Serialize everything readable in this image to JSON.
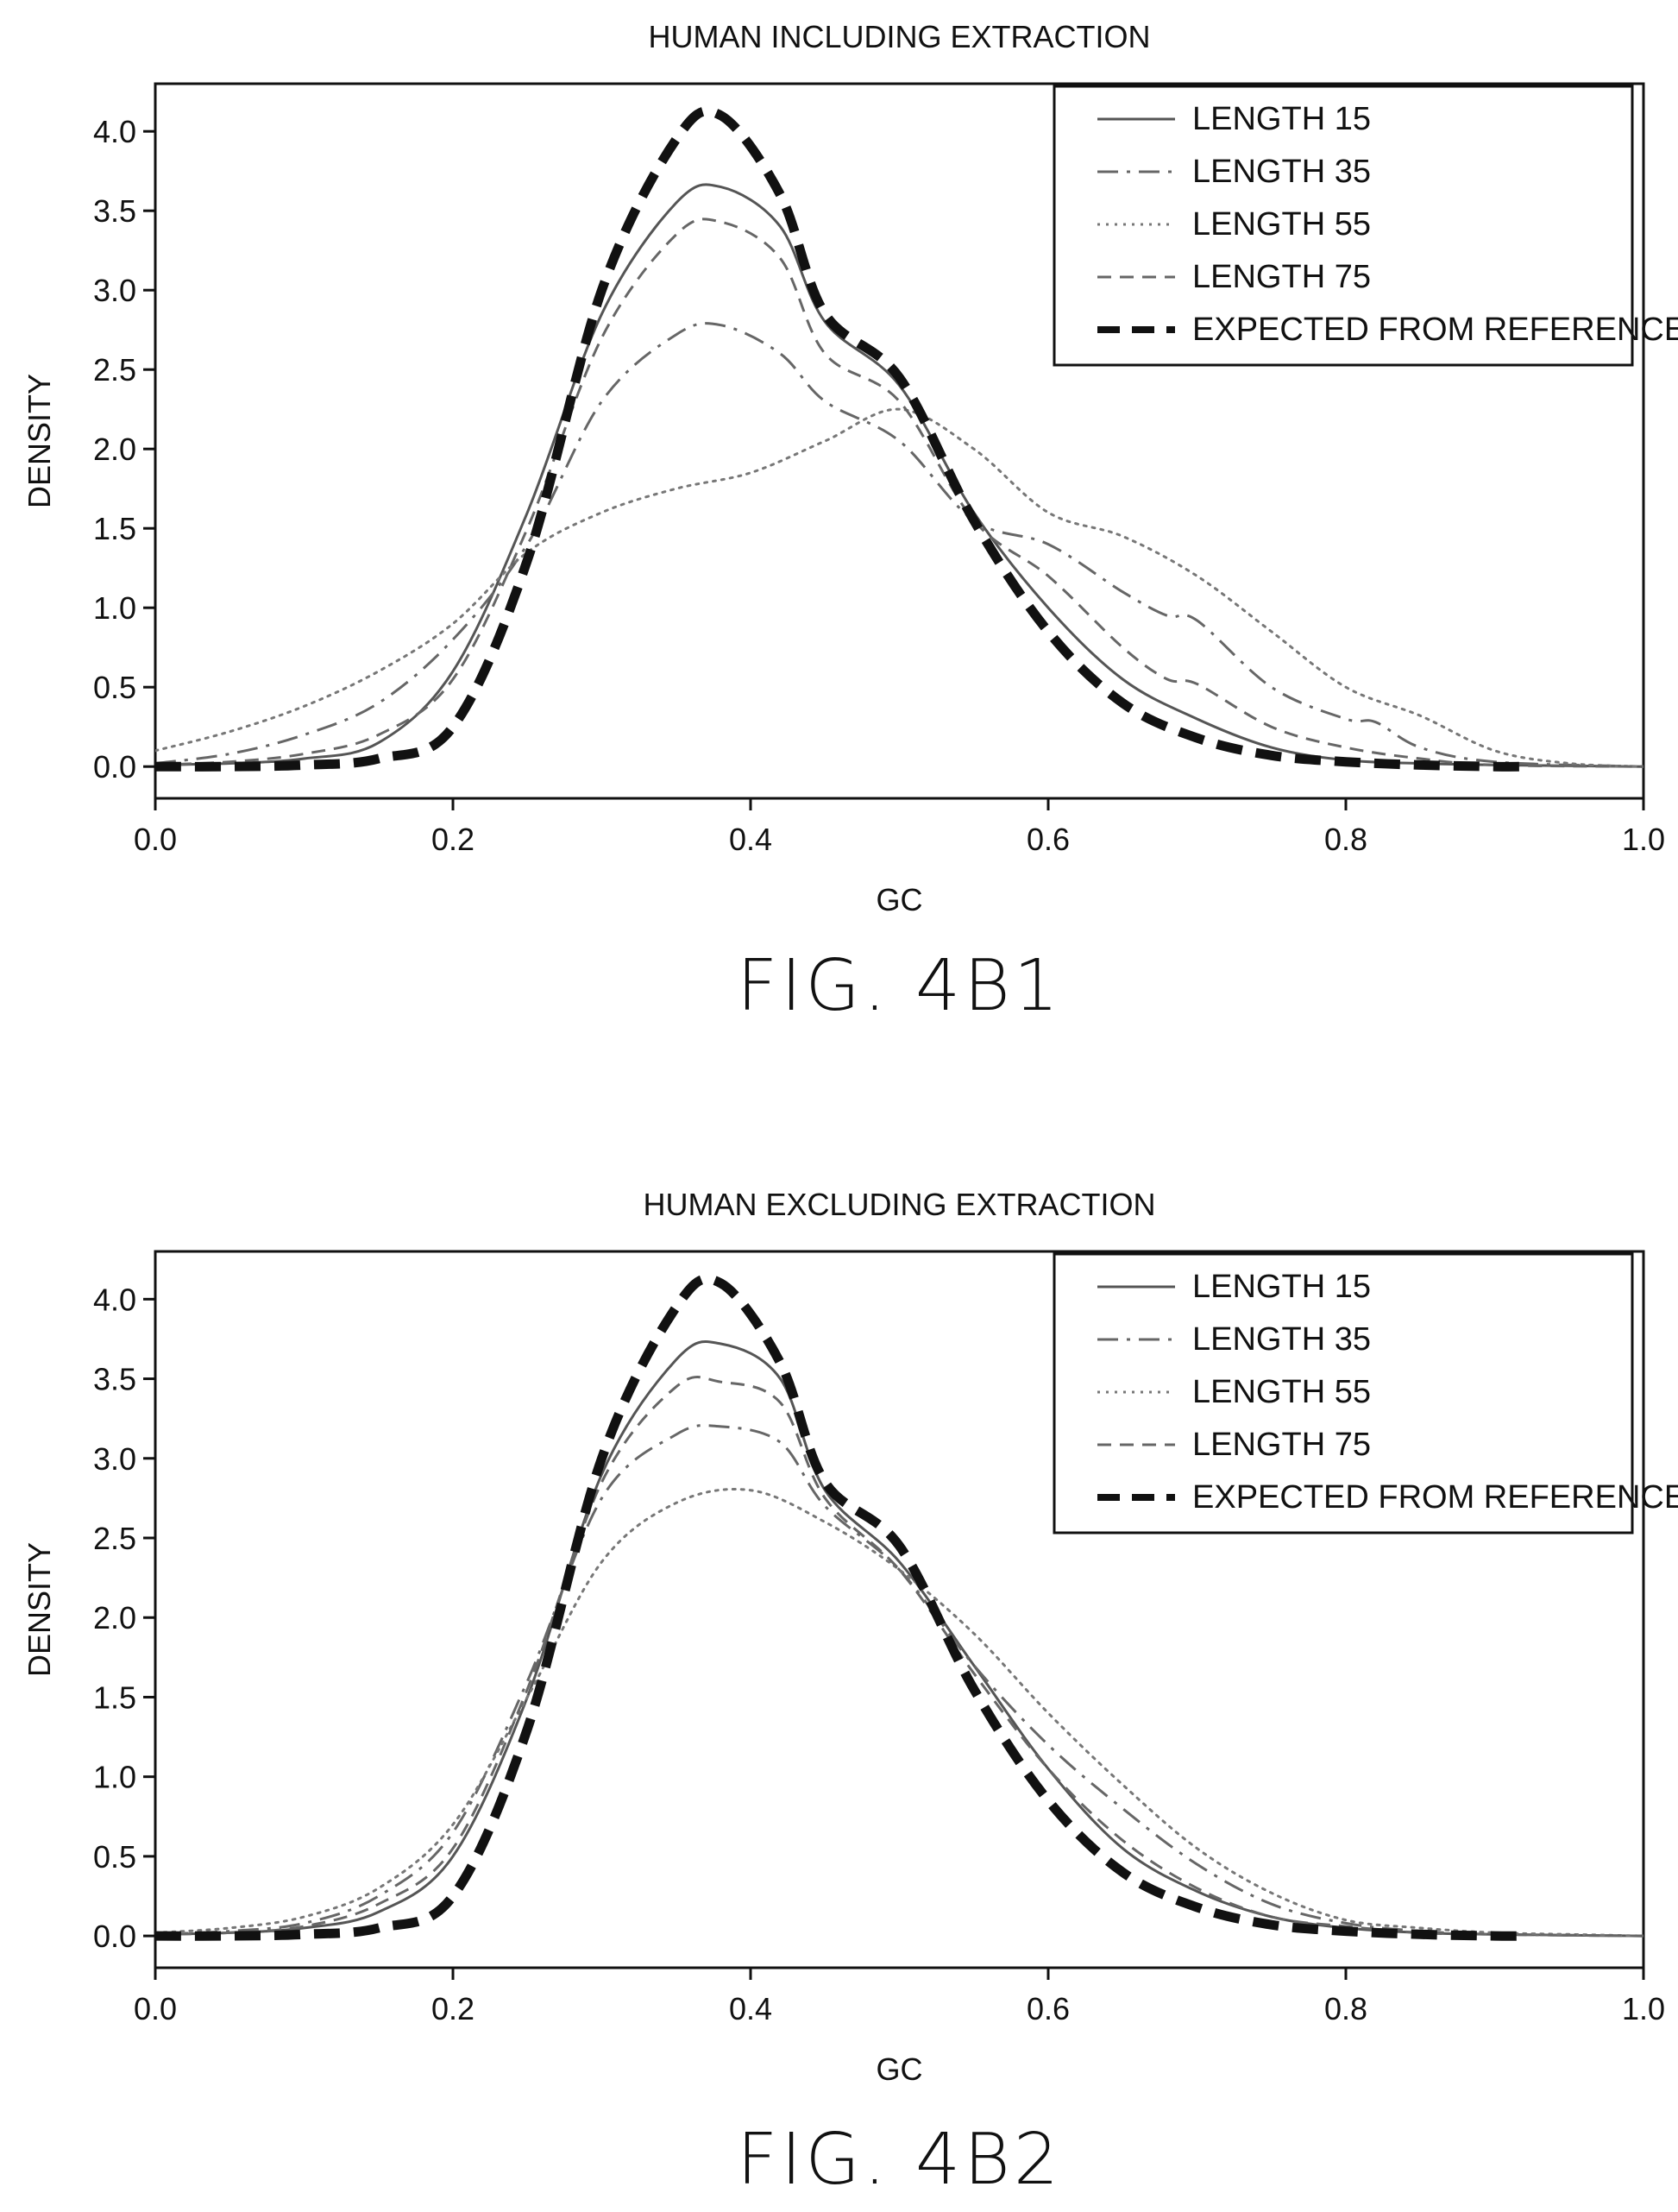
{
  "chart_data": [
    {
      "type": "line",
      "title": "HUMAN INCLUDING EXTRACTION",
      "caption": "FIG. 4B1",
      "xlabel": "GC",
      "ylabel": "DENSITY",
      "xlim": [
        0.0,
        1.0
      ],
      "ylim": [
        -0.2,
        4.3
      ],
      "xticks": [
        "0.0",
        "0.2",
        "0.4",
        "0.6",
        "0.8",
        "1.0"
      ],
      "yticks": [
        "0.0",
        "0.5",
        "1.0",
        "1.5",
        "2.0",
        "2.5",
        "3.0",
        "3.5",
        "4.0"
      ],
      "legend_position": "top-right",
      "grid": false,
      "series": [
        {
          "name": "LENGTH 15",
          "style": "solid",
          "color": "#555555",
          "x": [
            0.0,
            0.05,
            0.1,
            0.15,
            0.2,
            0.25,
            0.3,
            0.35,
            0.38,
            0.42,
            0.45,
            0.5,
            0.55,
            0.6,
            0.65,
            0.7,
            0.75,
            0.8,
            0.85,
            0.9,
            1.0
          ],
          "y": [
            0.01,
            0.02,
            0.05,
            0.15,
            0.6,
            1.6,
            2.85,
            3.55,
            3.65,
            3.4,
            2.8,
            2.4,
            1.6,
            1.0,
            0.55,
            0.3,
            0.12,
            0.04,
            0.02,
            0.01,
            0.0
          ]
        },
        {
          "name": "LENGTH 35",
          "style": "dashdot",
          "color": "#666666",
          "x": [
            0.0,
            0.05,
            0.1,
            0.15,
            0.2,
            0.25,
            0.3,
            0.35,
            0.38,
            0.42,
            0.45,
            0.5,
            0.55,
            0.6,
            0.65,
            0.68,
            0.7,
            0.75,
            0.8,
            0.82,
            0.85,
            0.9,
            1.0
          ],
          "y": [
            0.02,
            0.08,
            0.2,
            0.4,
            0.8,
            1.4,
            2.3,
            2.72,
            2.78,
            2.6,
            2.3,
            2.05,
            1.55,
            1.4,
            1.1,
            0.95,
            0.92,
            0.5,
            0.3,
            0.28,
            0.12,
            0.03,
            0.0
          ]
        },
        {
          "name": "LENGTH 55",
          "style": "dotted",
          "color": "#777777",
          "x": [
            0.0,
            0.05,
            0.1,
            0.15,
            0.2,
            0.25,
            0.3,
            0.35,
            0.4,
            0.45,
            0.5,
            0.55,
            0.6,
            0.65,
            0.7,
            0.75,
            0.8,
            0.85,
            0.9,
            0.95,
            1.0
          ],
          "y": [
            0.1,
            0.22,
            0.38,
            0.6,
            0.9,
            1.35,
            1.6,
            1.75,
            1.85,
            2.05,
            2.25,
            2.0,
            1.6,
            1.45,
            1.2,
            0.85,
            0.5,
            0.32,
            0.1,
            0.02,
            0.0
          ]
        },
        {
          "name": "LENGTH 75",
          "style": "dashed",
          "color": "#666666",
          "x": [
            0.0,
            0.05,
            0.1,
            0.15,
            0.2,
            0.25,
            0.3,
            0.35,
            0.38,
            0.42,
            0.45,
            0.5,
            0.55,
            0.6,
            0.65,
            0.68,
            0.7,
            0.75,
            0.8,
            0.85,
            0.9,
            1.0
          ],
          "y": [
            0.01,
            0.03,
            0.08,
            0.2,
            0.55,
            1.5,
            2.7,
            3.35,
            3.43,
            3.2,
            2.6,
            2.3,
            1.55,
            1.2,
            0.75,
            0.55,
            0.52,
            0.25,
            0.12,
            0.05,
            0.01,
            0.0
          ]
        },
        {
          "name": "EXPECTED FROM REFERENCE",
          "style": "bold-dashed",
          "color": "#111111",
          "x": [
            0.0,
            0.05,
            0.1,
            0.15,
            0.2,
            0.25,
            0.3,
            0.35,
            0.38,
            0.42,
            0.45,
            0.5,
            0.55,
            0.6,
            0.65,
            0.7,
            0.75,
            0.8,
            0.85,
            0.9,
            0.92
          ],
          "y": [
            0.0,
            0.0,
            0.01,
            0.05,
            0.25,
            1.3,
            3.0,
            3.95,
            4.1,
            3.6,
            2.85,
            2.45,
            1.55,
            0.85,
            0.4,
            0.18,
            0.07,
            0.03,
            0.01,
            0.0,
            0.0
          ]
        }
      ]
    },
    {
      "type": "line",
      "title": "HUMAN EXCLUDING EXTRACTION",
      "caption": "FIG. 4B2",
      "xlabel": "GC",
      "ylabel": "DENSITY",
      "xlim": [
        0.0,
        1.0
      ],
      "ylim": [
        -0.2,
        4.3
      ],
      "xticks": [
        "0.0",
        "0.2",
        "0.4",
        "0.6",
        "0.8",
        "1.0"
      ],
      "yticks": [
        "0.0",
        "0.5",
        "1.0",
        "1.5",
        "2.0",
        "2.5",
        "3.0",
        "3.5",
        "4.0"
      ],
      "legend_position": "top-right",
      "grid": false,
      "series": [
        {
          "name": "LENGTH 15",
          "style": "solid",
          "color": "#555555",
          "x": [
            0.0,
            0.05,
            0.1,
            0.15,
            0.2,
            0.25,
            0.3,
            0.35,
            0.38,
            0.42,
            0.45,
            0.5,
            0.55,
            0.6,
            0.65,
            0.7,
            0.75,
            0.8,
            0.85,
            0.9,
            1.0
          ],
          "y": [
            0.01,
            0.02,
            0.05,
            0.15,
            0.5,
            1.5,
            2.9,
            3.62,
            3.72,
            3.5,
            2.8,
            2.35,
            1.7,
            1.05,
            0.55,
            0.28,
            0.12,
            0.05,
            0.02,
            0.01,
            0.0
          ]
        },
        {
          "name": "LENGTH 35",
          "style": "dashdot",
          "color": "#666666",
          "x": [
            0.0,
            0.05,
            0.1,
            0.15,
            0.2,
            0.25,
            0.3,
            0.35,
            0.38,
            0.42,
            0.45,
            0.5,
            0.55,
            0.6,
            0.65,
            0.7,
            0.75,
            0.8,
            0.85,
            0.9,
            1.0
          ],
          "y": [
            0.01,
            0.03,
            0.08,
            0.25,
            0.65,
            1.6,
            2.75,
            3.15,
            3.2,
            3.1,
            2.7,
            2.3,
            1.7,
            1.2,
            0.8,
            0.45,
            0.2,
            0.08,
            0.03,
            0.01,
            0.0
          ]
        },
        {
          "name": "LENGTH 55",
          "style": "dotted",
          "color": "#777777",
          "x": [
            0.0,
            0.05,
            0.1,
            0.15,
            0.2,
            0.25,
            0.3,
            0.35,
            0.4,
            0.45,
            0.5,
            0.55,
            0.6,
            0.65,
            0.7,
            0.75,
            0.8,
            0.85,
            0.9,
            0.95,
            1.0
          ],
          "y": [
            0.02,
            0.05,
            0.12,
            0.3,
            0.7,
            1.5,
            2.35,
            2.72,
            2.8,
            2.6,
            2.3,
            1.9,
            1.4,
            0.95,
            0.55,
            0.27,
            0.1,
            0.05,
            0.02,
            0.01,
            0.0
          ]
        },
        {
          "name": "LENGTH 75",
          "style": "dashed",
          "color": "#666666",
          "x": [
            0.0,
            0.05,
            0.1,
            0.15,
            0.2,
            0.25,
            0.3,
            0.35,
            0.38,
            0.42,
            0.45,
            0.5,
            0.55,
            0.6,
            0.65,
            0.7,
            0.75,
            0.8,
            0.85,
            0.9,
            1.0
          ],
          "y": [
            0.01,
            0.02,
            0.06,
            0.2,
            0.55,
            1.55,
            2.85,
            3.45,
            3.48,
            3.35,
            2.75,
            2.3,
            1.65,
            1.05,
            0.6,
            0.3,
            0.12,
            0.06,
            0.02,
            0.01,
            0.0
          ]
        },
        {
          "name": "EXPECTED FROM REFERENCE",
          "style": "bold-dashed",
          "color": "#111111",
          "x": [
            0.0,
            0.05,
            0.1,
            0.15,
            0.2,
            0.25,
            0.3,
            0.35,
            0.38,
            0.42,
            0.45,
            0.5,
            0.55,
            0.6,
            0.65,
            0.7,
            0.75,
            0.8,
            0.85,
            0.9,
            0.92
          ],
          "y": [
            0.0,
            0.0,
            0.01,
            0.05,
            0.25,
            1.3,
            3.0,
            3.95,
            4.1,
            3.6,
            2.85,
            2.45,
            1.55,
            0.85,
            0.4,
            0.18,
            0.07,
            0.03,
            0.01,
            0.0,
            0.0
          ]
        }
      ]
    }
  ]
}
